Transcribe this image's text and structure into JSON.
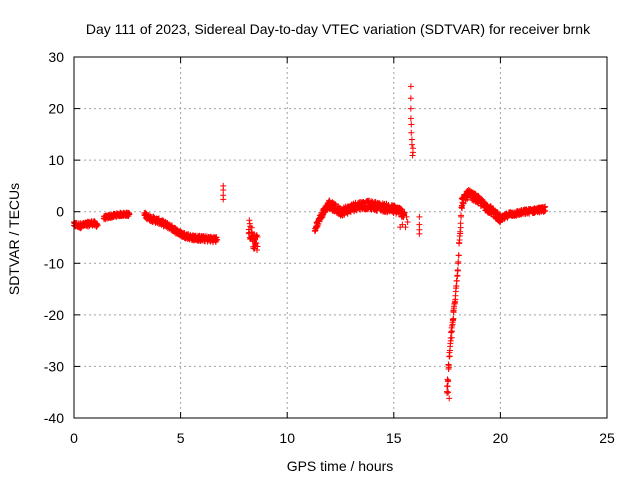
{
  "chart_data": {
    "type": "scatter",
    "title": "Day 111 of 2023, Sidereal Day-to-day VTEC variation (SDTVAR) for receiver brnk",
    "xlabel": "GPS time / hours",
    "ylabel": "SDTVAR / TECUs",
    "xlim": [
      0,
      25
    ],
    "ylim": [
      -40,
      30
    ],
    "xticks": [
      0,
      5,
      10,
      15,
      20,
      25
    ],
    "yticks": [
      -40,
      -30,
      -20,
      -10,
      0,
      10,
      20,
      30
    ],
    "grid": true,
    "marker": "+",
    "series": [
      {
        "name": "brnk",
        "color": "#ff0000",
        "segments": [
          {
            "x0": 0.0,
            "x1": 1.1,
            "pts": [
              [
                0.0,
                -2.5
              ],
              [
                0.3,
                -2.7
              ],
              [
                0.6,
                -2.5
              ],
              [
                0.85,
                -2.2
              ],
              [
                1.1,
                -2.5
              ]
            ],
            "spread": 1.0
          },
          {
            "x0": 1.4,
            "x1": 2.6,
            "pts": [
              [
                1.4,
                -1.2
              ],
              [
                1.8,
                -0.8
              ],
              [
                2.2,
                -0.5
              ],
              [
                2.6,
                -0.5
              ]
            ],
            "spread": 0.7
          },
          {
            "x0": 3.3,
            "x1": 6.7,
            "pts": [
              [
                3.3,
                -0.6
              ],
              [
                3.6,
                -1.3
              ],
              [
                4.0,
                -1.9
              ],
              [
                4.5,
                -2.9
              ],
              [
                5.0,
                -4.3
              ],
              [
                5.5,
                -5.0
              ],
              [
                6.0,
                -5.2
              ],
              [
                6.7,
                -5.4
              ]
            ],
            "spread": 1.1
          },
          {
            "x0": 8.2,
            "x1": 8.6,
            "pts": [
              [
                8.2,
                -3.0
              ],
              [
                8.4,
                -5.5
              ],
              [
                8.6,
                -6.0
              ]
            ],
            "spread": 3.5
          },
          {
            "x0": 11.3,
            "x1": 11.95,
            "pts": [
              [
                11.3,
                -3.5
              ],
              [
                11.5,
                -1.5
              ],
              [
                11.7,
                0.0
              ],
              [
                11.95,
                1.5
              ]
            ],
            "spread": 1.2
          },
          {
            "x0": 11.95,
            "x1": 15.5,
            "pts": [
              [
                11.95,
                1.5
              ],
              [
                12.2,
                0.8
              ],
              [
                12.5,
                0.0
              ],
              [
                12.9,
                0.5
              ],
              [
                13.3,
                1.2
              ],
              [
                13.8,
                1.3
              ],
              [
                14.3,
                1.0
              ],
              [
                14.8,
                0.6
              ],
              [
                15.2,
                0.3
              ],
              [
                15.5,
                -0.5
              ]
            ],
            "spread": 1.7
          },
          {
            "x0": 17.5,
            "x1": 17.8,
            "pts": [
              [
                17.5,
                -34.5
              ],
              [
                17.65,
                -26
              ],
              [
                17.8,
                -20
              ]
            ],
            "spread": 2.5
          },
          {
            "x0": 17.8,
            "x1": 18.2,
            "pts": [
              [
                17.8,
                -20
              ],
              [
                17.95,
                -14
              ],
              [
                18.1,
                -4
              ],
              [
                18.2,
                1.5
              ]
            ],
            "spread": 2.0
          },
          {
            "x0": 18.2,
            "x1": 20.0,
            "pts": [
              [
                18.2,
                2.0
              ],
              [
                18.5,
                3.5
              ],
              [
                18.9,
                2.5
              ],
              [
                19.3,
                1.0
              ],
              [
                19.7,
                -0.2
              ],
              [
                20.0,
                -1.5
              ]
            ],
            "spread": 1.6
          },
          {
            "x0": 20.0,
            "x1": 22.1,
            "pts": [
              [
                20.0,
                -1.5
              ],
              [
                20.4,
                -0.5
              ],
              [
                20.8,
                -0.3
              ],
              [
                21.2,
                0.0
              ],
              [
                21.7,
                0.3
              ],
              [
                22.1,
                0.5
              ]
            ],
            "spread": 1.0
          }
        ],
        "points": [
          [
            7.0,
            5.0
          ],
          [
            7.0,
            4.2
          ],
          [
            7.0,
            3.2
          ],
          [
            7.0,
            2.4
          ],
          [
            15.8,
            24.3
          ],
          [
            15.8,
            22.0
          ],
          [
            15.8,
            20.0
          ],
          [
            15.8,
            18.1
          ],
          [
            15.82,
            16.9
          ],
          [
            15.82,
            15.3
          ],
          [
            15.85,
            14.0
          ],
          [
            15.85,
            13.0
          ],
          [
            15.9,
            12.3
          ],
          [
            15.9,
            11.5
          ],
          [
            15.88,
            10.9
          ],
          [
            16.2,
            -1.0
          ],
          [
            16.2,
            -2.5
          ],
          [
            16.2,
            -3.5
          ],
          [
            16.2,
            -4.3
          ],
          [
            15.6,
            -1.0
          ],
          [
            15.65,
            -2.0
          ],
          [
            15.55,
            -3.0
          ],
          [
            15.4,
            -2.5
          ],
          [
            15.3,
            -3.0
          ],
          [
            17.6,
            -36.2
          ],
          [
            17.55,
            -35.0
          ],
          [
            17.5,
            -33.8
          ]
        ]
      }
    ]
  }
}
